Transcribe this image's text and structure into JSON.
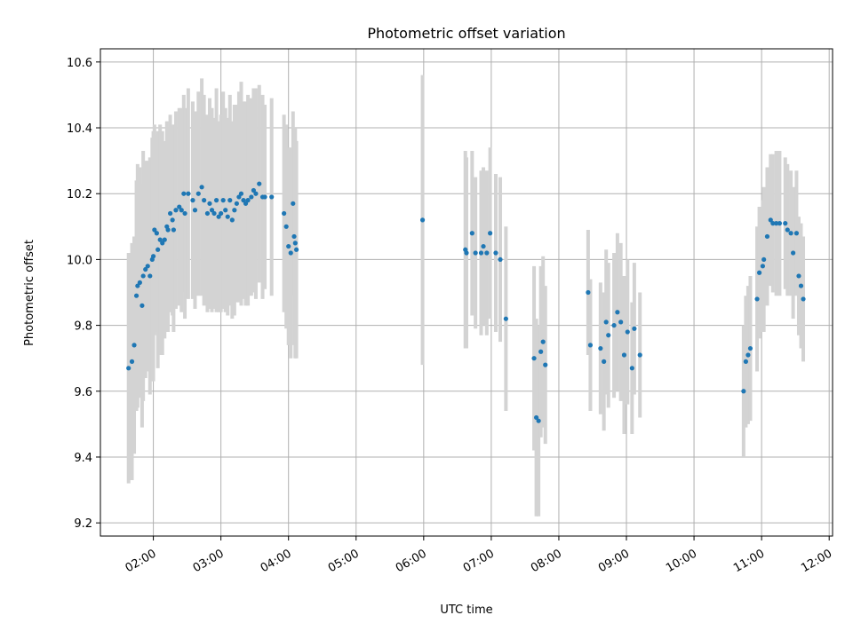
{
  "chart_data": {
    "type": "scatter",
    "title": "Photometric offset variation",
    "xlabel": "UTC time",
    "ylabel": "Photometric offset",
    "x_ticks": [
      "02:00",
      "03:00",
      "04:00",
      "05:00",
      "06:00",
      "07:00",
      "08:00",
      "09:00",
      "10:00",
      "11:00",
      "12:00"
    ],
    "y_ticks": [
      "9.2",
      "9.4",
      "9.6",
      "9.8",
      "10.0",
      "10.2",
      "10.4",
      "10.6"
    ],
    "xlim": [
      "01:13",
      "12:03"
    ],
    "ylim": [
      9.16,
      10.64
    ],
    "grid": true,
    "colors": {
      "points": "#1f77b4",
      "errorbars": "#d3d3d3",
      "grid": "#b0b0b0"
    },
    "points": [
      {
        "x": "01:38",
        "y": 9.67,
        "err": 0.35
      },
      {
        "x": "01:41",
        "y": 9.69,
        "err": 0.36
      },
      {
        "x": "01:43",
        "y": 9.74,
        "err": 0.33
      },
      {
        "x": "01:45",
        "y": 9.89,
        "err": 0.35
      },
      {
        "x": "01:46",
        "y": 9.92,
        "err": 0.37
      },
      {
        "x": "01:48",
        "y": 9.93,
        "err": 0.35
      },
      {
        "x": "01:50",
        "y": 9.86,
        "err": 0.37
      },
      {
        "x": "01:51",
        "y": 9.95,
        "err": 0.38
      },
      {
        "x": "01:53",
        "y": 9.97,
        "err": 0.33
      },
      {
        "x": "01:55",
        "y": 9.98,
        "err": 0.32
      },
      {
        "x": "01:57",
        "y": 9.95,
        "err": 0.36
      },
      {
        "x": "01:59",
        "y": 10.0,
        "err": 0.37
      },
      {
        "x": "02:00",
        "y": 10.01,
        "err": 0.38
      },
      {
        "x": "02:01",
        "y": 10.09,
        "err": 0.32
      },
      {
        "x": "02:03",
        "y": 10.08,
        "err": 0.3
      },
      {
        "x": "02:04",
        "y": 10.03,
        "err": 0.36
      },
      {
        "x": "02:06",
        "y": 10.06,
        "err": 0.35
      },
      {
        "x": "02:08",
        "y": 10.05,
        "err": 0.34
      },
      {
        "x": "02:10",
        "y": 10.06,
        "err": 0.3
      },
      {
        "x": "02:12",
        "y": 10.1,
        "err": 0.32
      },
      {
        "x": "02:13",
        "y": 10.09,
        "err": 0.31
      },
      {
        "x": "02:15",
        "y": 10.14,
        "err": 0.3
      },
      {
        "x": "02:17",
        "y": 10.12,
        "err": 0.29
      },
      {
        "x": "02:18",
        "y": 10.09,
        "err": 0.31
      },
      {
        "x": "02:20",
        "y": 10.15,
        "err": 0.3
      },
      {
        "x": "02:23",
        "y": 10.16,
        "err": 0.3
      },
      {
        "x": "02:25",
        "y": 10.15,
        "err": 0.31
      },
      {
        "x": "02:27",
        "y": 10.2,
        "err": 0.3
      },
      {
        "x": "02:28",
        "y": 10.14,
        "err": 0.32
      },
      {
        "x": "02:31",
        "y": 10.2,
        "err": 0.32
      },
      {
        "x": "02:35",
        "y": 10.18,
        "err": 0.3
      },
      {
        "x": "02:37",
        "y": 10.15,
        "err": 0.3
      },
      {
        "x": "02:40",
        "y": 10.2,
        "err": 0.31
      },
      {
        "x": "02:43",
        "y": 10.22,
        "err": 0.33
      },
      {
        "x": "02:45",
        "y": 10.18,
        "err": 0.32
      },
      {
        "x": "02:48",
        "y": 10.14,
        "err": 0.3
      },
      {
        "x": "02:50",
        "y": 10.17,
        "err": 0.32
      },
      {
        "x": "02:52",
        "y": 10.15,
        "err": 0.31
      },
      {
        "x": "02:54",
        "y": 10.14,
        "err": 0.29
      },
      {
        "x": "02:56",
        "y": 10.18,
        "err": 0.34
      },
      {
        "x": "02:58",
        "y": 10.13,
        "err": 0.29
      },
      {
        "x": "03:00",
        "y": 10.14,
        "err": 0.3
      },
      {
        "x": "03:02",
        "y": 10.18,
        "err": 0.33
      },
      {
        "x": "03:04",
        "y": 10.15,
        "err": 0.31
      },
      {
        "x": "03:06",
        "y": 10.13,
        "err": 0.3
      },
      {
        "x": "03:08",
        "y": 10.18,
        "err": 0.32
      },
      {
        "x": "03:10",
        "y": 10.12,
        "err": 0.3
      },
      {
        "x": "03:12",
        "y": 10.15,
        "err": 0.32
      },
      {
        "x": "03:14",
        "y": 10.17,
        "err": 0.3
      },
      {
        "x": "03:16",
        "y": 10.19,
        "err": 0.32
      },
      {
        "x": "03:18",
        "y": 10.2,
        "err": 0.34
      },
      {
        "x": "03:20",
        "y": 10.18,
        "err": 0.3
      },
      {
        "x": "03:22",
        "y": 10.17,
        "err": 0.31
      },
      {
        "x": "03:24",
        "y": 10.18,
        "err": 0.32
      },
      {
        "x": "03:27",
        "y": 10.19,
        "err": 0.3
      },
      {
        "x": "03:29",
        "y": 10.21,
        "err": 0.31
      },
      {
        "x": "03:31",
        "y": 10.2,
        "err": 0.32
      },
      {
        "x": "03:34",
        "y": 10.23,
        "err": 0.3
      },
      {
        "x": "03:37",
        "y": 10.19,
        "err": 0.31
      },
      {
        "x": "03:39",
        "y": 10.19,
        "err": 0.28
      },
      {
        "x": "03:45",
        "y": 10.19,
        "err": 0.3
      },
      {
        "x": "03:56",
        "y": 10.14,
        "err": 0.3
      },
      {
        "x": "03:58",
        "y": 10.1,
        "err": 0.31
      },
      {
        "x": "04:00",
        "y": 10.04,
        "err": 0.3
      },
      {
        "x": "04:02",
        "y": 10.02,
        "err": 0.32
      },
      {
        "x": "04:04",
        "y": 10.17,
        "err": 0.28
      },
      {
        "x": "04:05",
        "y": 10.07,
        "err": 0.33
      },
      {
        "x": "04:06",
        "y": 10.05,
        "err": 0.35
      },
      {
        "x": "04:07",
        "y": 10.03,
        "err": 0.33
      },
      {
        "x": "05:59",
        "y": 10.12,
        "err": 0.44
      },
      {
        "x": "06:37",
        "y": 10.03,
        "err": 0.3
      },
      {
        "x": "06:38",
        "y": 10.02,
        "err": 0.29
      },
      {
        "x": "06:43",
        "y": 10.08,
        "err": 0.25
      },
      {
        "x": "06:46",
        "y": 10.02,
        "err": 0.23
      },
      {
        "x": "06:51",
        "y": 10.02,
        "err": 0.25
      },
      {
        "x": "06:53",
        "y": 10.04,
        "err": 0.24
      },
      {
        "x": "06:56",
        "y": 10.02,
        "err": 0.25
      },
      {
        "x": "06:59",
        "y": 10.08,
        "err": 0.26
      },
      {
        "x": "07:04",
        "y": 10.02,
        "err": 0.24
      },
      {
        "x": "07:08",
        "y": 10.0,
        "err": 0.25
      },
      {
        "x": "07:13",
        "y": 9.82,
        "err": 0.28
      },
      {
        "x": "07:38",
        "y": 9.7,
        "err": 0.28
      },
      {
        "x": "07:40",
        "y": 9.52,
        "err": 0.3
      },
      {
        "x": "07:42",
        "y": 9.51,
        "err": 0.29
      },
      {
        "x": "07:44",
        "y": 9.72,
        "err": 0.26
      },
      {
        "x": "07:46",
        "y": 9.75,
        "err": 0.26
      },
      {
        "x": "07:48",
        "y": 9.68,
        "err": 0.24
      },
      {
        "x": "08:26",
        "y": 9.9,
        "err": 0.19
      },
      {
        "x": "08:28",
        "y": 9.74,
        "err": 0.2
      },
      {
        "x": "08:37",
        "y": 9.73,
        "err": 0.2
      },
      {
        "x": "08:40",
        "y": 9.69,
        "err": 0.21
      },
      {
        "x": "08:42",
        "y": 9.81,
        "err": 0.22
      },
      {
        "x": "08:44",
        "y": 9.77,
        "err": 0.22
      },
      {
        "x": "08:49",
        "y": 9.8,
        "err": 0.22
      },
      {
        "x": "08:52",
        "y": 9.84,
        "err": 0.24
      },
      {
        "x": "08:55",
        "y": 9.81,
        "err": 0.24
      },
      {
        "x": "08:58",
        "y": 9.71,
        "err": 0.24
      },
      {
        "x": "09:01",
        "y": 9.78,
        "err": 0.22
      },
      {
        "x": "09:05",
        "y": 9.67,
        "err": 0.2
      },
      {
        "x": "09:07",
        "y": 9.79,
        "err": 0.2
      },
      {
        "x": "09:12",
        "y": 9.71,
        "err": 0.19
      },
      {
        "x": "10:44",
        "y": 9.6,
        "err": 0.2
      },
      {
        "x": "10:46",
        "y": 9.69,
        "err": 0.2
      },
      {
        "x": "10:48",
        "y": 9.71,
        "err": 0.21
      },
      {
        "x": "10:50",
        "y": 9.73,
        "err": 0.22
      },
      {
        "x": "10:56",
        "y": 9.88,
        "err": 0.22
      },
      {
        "x": "10:58",
        "y": 9.96,
        "err": 0.2
      },
      {
        "x": "11:01",
        "y": 9.98,
        "err": 0.2
      },
      {
        "x": "11:02",
        "y": 10.0,
        "err": 0.22
      },
      {
        "x": "11:05",
        "y": 10.07,
        "err": 0.21
      },
      {
        "x": "11:08",
        "y": 10.12,
        "err": 0.2
      },
      {
        "x": "11:10",
        "y": 10.11,
        "err": 0.21
      },
      {
        "x": "11:13",
        "y": 10.11,
        "err": 0.22
      },
      {
        "x": "11:16",
        "y": 10.11,
        "err": 0.22
      },
      {
        "x": "11:21",
        "y": 10.11,
        "err": 0.2
      },
      {
        "x": "11:23",
        "y": 10.09,
        "err": 0.2
      },
      {
        "x": "11:26",
        "y": 10.08,
        "err": 0.19
      },
      {
        "x": "11:28",
        "y": 10.02,
        "err": 0.2
      },
      {
        "x": "11:31",
        "y": 10.08,
        "err": 0.19
      },
      {
        "x": "11:33",
        "y": 9.95,
        "err": 0.18
      },
      {
        "x": "11:35",
        "y": 9.92,
        "err": 0.19
      },
      {
        "x": "11:37",
        "y": 9.88,
        "err": 0.19
      }
    ]
  }
}
